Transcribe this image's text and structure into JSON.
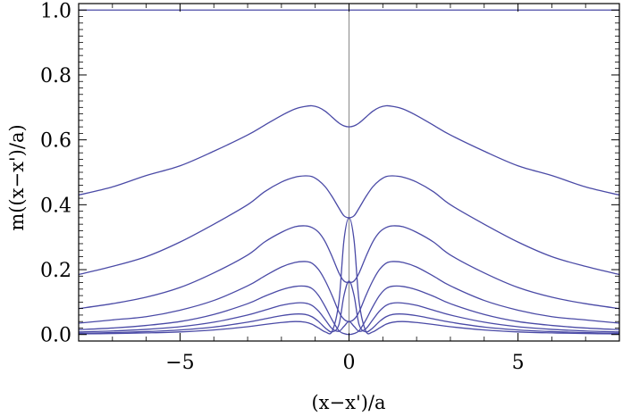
{
  "chart_data": {
    "type": "line",
    "title": "",
    "xlabel": "(x−x')/a",
    "ylabel": "m((x−x')/a)",
    "xlim": [
      -8,
      8
    ],
    "ylim": [
      -0.02,
      1.02
    ],
    "xticks": [
      -5,
      0,
      5
    ],
    "xtick_labels": [
      "−5",
      "0",
      "5"
    ],
    "yticks": [
      0.0,
      0.2,
      0.4,
      0.6,
      0.8,
      1.0
    ],
    "ytick_labels": [
      "0.0",
      "0.2",
      "0.4",
      "0.6",
      "0.8",
      "1.0"
    ],
    "grid": false,
    "frame": "full box with ticks on all sides",
    "zero_axis": "vertical line at x = 0",
    "line_color": "#4a4aa6",
    "axis_color": "#000000",
    "x": [
      -8,
      -7,
      -6,
      -5,
      -4,
      -3,
      -2.5,
      -2,
      -1.6,
      -1.3,
      -1.1,
      -0.9,
      -0.7,
      -0.5,
      -0.3,
      -0.15,
      0,
      0.15,
      0.3,
      0.5,
      0.7,
      0.9,
      1.1,
      1.3,
      1.6,
      2,
      2.5,
      3,
      4,
      5,
      6,
      7,
      8
    ],
    "series": [
      {
        "values": [
          1,
          1,
          1,
          1,
          1,
          1,
          1,
          1,
          1,
          1,
          1,
          1,
          1,
          1,
          1,
          1,
          1,
          1,
          1,
          1,
          1,
          1,
          1,
          1,
          1,
          1,
          1,
          1,
          1,
          1,
          1,
          1,
          1
        ]
      },
      {
        "values": [
          0.43,
          0.455,
          0.49,
          0.52,
          0.565,
          0.615,
          0.645,
          0.675,
          0.695,
          0.703,
          0.705,
          0.7,
          0.688,
          0.67,
          0.652,
          0.643,
          0.64,
          0.643,
          0.652,
          0.67,
          0.688,
          0.7,
          0.705,
          0.703,
          0.695,
          0.675,
          0.645,
          0.615,
          0.565,
          0.52,
          0.49,
          0.455,
          0.43
        ]
      },
      {
        "values": [
          0.185,
          0.21,
          0.24,
          0.285,
          0.34,
          0.4,
          0.44,
          0.47,
          0.485,
          0.489,
          0.487,
          0.475,
          0.455,
          0.425,
          0.39,
          0.366,
          0.36,
          0.366,
          0.39,
          0.425,
          0.455,
          0.475,
          0.487,
          0.489,
          0.485,
          0.47,
          0.44,
          0.4,
          0.34,
          0.285,
          0.24,
          0.21,
          0.185
        ]
      },
      {
        "values": [
          0.08,
          0.095,
          0.115,
          0.145,
          0.19,
          0.245,
          0.285,
          0.315,
          0.332,
          0.335,
          0.33,
          0.315,
          0.285,
          0.24,
          0.19,
          0.165,
          0.16,
          0.165,
          0.19,
          0.24,
          0.285,
          0.315,
          0.33,
          0.335,
          0.332,
          0.315,
          0.285,
          0.245,
          0.19,
          0.145,
          0.115,
          0.095,
          0.08
        ]
      },
      {
        "values": [
          0.035,
          0.045,
          0.055,
          0.075,
          0.105,
          0.15,
          0.18,
          0.208,
          0.222,
          0.225,
          0.22,
          0.2,
          0.165,
          0.12,
          0.07,
          0.047,
          0.04,
          0.047,
          0.07,
          0.12,
          0.165,
          0.2,
          0.22,
          0.225,
          0.222,
          0.208,
          0.18,
          0.15,
          0.105,
          0.075,
          0.055,
          0.045,
          0.035
        ]
      },
      {
        "values": [
          0.015,
          0.02,
          0.028,
          0.04,
          0.062,
          0.095,
          0.118,
          0.138,
          0.148,
          0.149,
          0.142,
          0.12,
          0.085,
          0.045,
          0.012,
          0.003,
          0.0,
          0.003,
          0.012,
          0.045,
          0.085,
          0.12,
          0.142,
          0.149,
          0.148,
          0.138,
          0.118,
          0.095,
          0.062,
          0.04,
          0.028,
          0.02,
          0.015
        ]
      },
      {
        "values": [
          0.008,
          0.011,
          0.016,
          0.024,
          0.038,
          0.06,
          0.075,
          0.09,
          0.097,
          0.097,
          0.09,
          0.072,
          0.045,
          0.018,
          0.01,
          0.025,
          0.04,
          0.025,
          0.01,
          0.018,
          0.045,
          0.072,
          0.09,
          0.097,
          0.097,
          0.09,
          0.075,
          0.06,
          0.038,
          0.024,
          0.016,
          0.011,
          0.008
        ]
      },
      {
        "values": [
          0.004,
          0.006,
          0.009,
          0.014,
          0.023,
          0.038,
          0.048,
          0.058,
          0.063,
          0.062,
          0.055,
          0.04,
          0.02,
          0.008,
          0.03,
          0.12,
          0.165,
          0.12,
          0.03,
          0.008,
          0.02,
          0.04,
          0.055,
          0.062,
          0.063,
          0.058,
          0.048,
          0.038,
          0.023,
          0.014,
          0.009,
          0.006,
          0.004
        ]
      },
      {
        "values": [
          0.002,
          0.003,
          0.005,
          0.008,
          0.014,
          0.024,
          0.031,
          0.037,
          0.04,
          0.038,
          0.032,
          0.02,
          0.008,
          0.01,
          0.1,
          0.29,
          0.36,
          0.29,
          0.1,
          0.01,
          0.008,
          0.02,
          0.032,
          0.038,
          0.04,
          0.037,
          0.031,
          0.024,
          0.014,
          0.008,
          0.005,
          0.003,
          0.002
        ]
      }
    ]
  }
}
